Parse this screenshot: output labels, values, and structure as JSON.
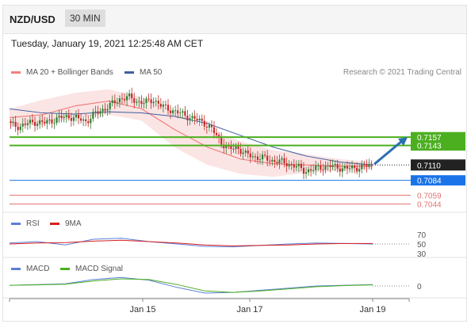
{
  "header": {
    "symbol": "NZD/USD",
    "timeframe": "30 MIN"
  },
  "timestamp": "Tuesday, January 19, 2021 12:25:48 AM CET",
  "credit": "Research © 2021 Trading Central",
  "legend": {
    "main": [
      {
        "label": "MA 20 + Bollinger Bands",
        "color": "#f08080"
      },
      {
        "label": "MA 50",
        "color": "#3d5fa0"
      }
    ],
    "rsi": [
      {
        "label": "RSI",
        "color": "#5b7fd6"
      },
      {
        "label": "9MA",
        "color": "#d62020"
      }
    ],
    "macd": [
      {
        "label": "MACD",
        "color": "#5b7fd6"
      },
      {
        "label": "MACD Signal",
        "color": "#4caf20"
      }
    ]
  },
  "colors": {
    "up": "#2e7d32",
    "down": "#c62828",
    "resistance": "#4caf20",
    "current": "#222222",
    "pivot": "#1a73e8",
    "support": "#e57373",
    "arrow": "#2a6fb4"
  },
  "chart_data": {
    "type": "candlestick",
    "ylim": [
      0.703,
      0.7255
    ],
    "x_labels": [
      "Jan 15",
      "Jan 17",
      "Jan 19"
    ],
    "current_price": "0.7110",
    "levels": [
      {
        "value": "0.7157",
        "kind": "resistance"
      },
      {
        "value": "0.7143",
        "kind": "resistance"
      },
      {
        "value": "0.7084",
        "kind": "pivot"
      },
      {
        "value": "0.7059",
        "kind": "support"
      },
      {
        "value": "0.7044",
        "kind": "support"
      }
    ],
    "close_path": [
      0.7178,
      0.7175,
      0.718,
      0.7183,
      0.7181,
      0.7186,
      0.719,
      0.7192,
      0.7188,
      0.7184,
      0.7196,
      0.7204,
      0.7212,
      0.7222,
      0.7225,
      0.7218,
      0.7215,
      0.7221,
      0.7209,
      0.7204,
      0.7198,
      0.7193,
      0.7187,
      0.7182,
      0.717,
      0.715,
      0.7136,
      0.714,
      0.7128,
      0.7124,
      0.7122,
      0.7118,
      0.7116,
      0.7112,
      0.7108,
      0.71,
      0.7102,
      0.7107,
      0.7108,
      0.7106,
      0.7104,
      0.7105,
      0.7107,
      0.711
    ],
    "bb_upper": [
      0.7205,
      0.722,
      0.7232,
      0.7238,
      0.7225,
      0.72,
      0.717,
      0.715,
      0.7135,
      0.7128,
      0.712,
      0.7115
    ],
    "bb_lower": [
      0.7175,
      0.7178,
      0.719,
      0.7195,
      0.7185,
      0.714,
      0.711,
      0.7095,
      0.709,
      0.7097,
      0.71,
      0.7103
    ],
    "ma20": [
      0.719,
      0.7195,
      0.721,
      0.7218,
      0.7205,
      0.717,
      0.714,
      0.712,
      0.7112,
      0.711,
      0.7108,
      0.7108
    ],
    "ma50": [
      0.7205,
      0.7198,
      0.7196,
      0.72,
      0.7198,
      0.7192,
      0.718,
      0.716,
      0.714,
      0.7125,
      0.7115,
      0.711
    ],
    "forecast_target": "0.7157",
    "rsi": {
      "levels": [
        "70",
        "50",
        "30"
      ],
      "rsi_values": [
        52,
        55,
        48,
        60,
        62,
        55,
        50,
        45,
        44,
        47,
        50,
        52,
        51,
        50
      ],
      "ma_values": [
        50,
        52,
        53,
        56,
        58,
        55,
        52,
        48,
        46,
        47,
        48,
        50,
        51,
        51
      ]
    },
    "macd": {
      "levels": [
        "0"
      ],
      "macd_values": [
        0.1,
        0.2,
        0.3,
        0.9,
        1.2,
        0.8,
        -0.2,
        -1.0,
        -0.9,
        -0.6,
        -0.3,
        0.0,
        0.1,
        0.2
      ],
      "signal_values": [
        0.1,
        0.15,
        0.25,
        0.7,
        1.0,
        0.9,
        0.2,
        -0.7,
        -0.9,
        -0.7,
        -0.4,
        -0.1,
        0.05,
        0.15
      ]
    }
  }
}
